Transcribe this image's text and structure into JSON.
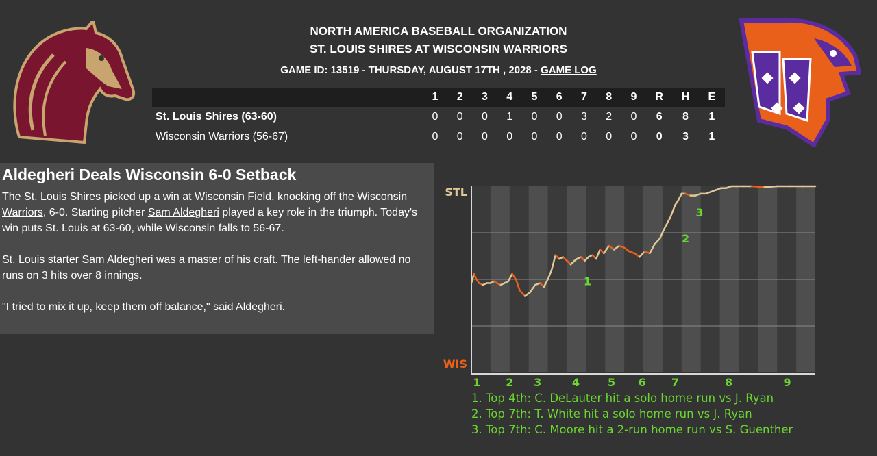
{
  "header": {
    "organization": "NORTH AMERICA BASEBALL ORGANIZATION",
    "matchup": "ST. LOUIS SHIRES AT WISCONSIN WARRIORS",
    "game_info": "GAME ID: 13519 - THURSDAY, AUGUST 17TH , 2028 - ",
    "game_log_link": "GAME LOG"
  },
  "logos": {
    "away": {
      "name": "horse-logo-icon",
      "color": "#7a1530",
      "accent": "#c8a46e"
    },
    "home": {
      "name": "warrior-bird-logo-icon",
      "color": "#5a2ca0",
      "accent": "#e8601a"
    }
  },
  "linescore": {
    "innings": [
      "1",
      "2",
      "3",
      "4",
      "5",
      "6",
      "7",
      "8",
      "9"
    ],
    "totals_headers": [
      "R",
      "H",
      "E"
    ],
    "teams": [
      {
        "name": "St. Louis Shires (63-60)",
        "innings": [
          "0",
          "0",
          "0",
          "1",
          "0",
          "0",
          "3",
          "2",
          "0"
        ],
        "r": "6",
        "h": "8",
        "e": "1"
      },
      {
        "name": "Wisconsin Warriors (56-67)",
        "innings": [
          "0",
          "0",
          "0",
          "0",
          "0",
          "0",
          "0",
          "0",
          "0"
        ],
        "r": "0",
        "h": "3",
        "e": "1"
      }
    ]
  },
  "story": {
    "headline": "Aldegheri Deals Wisconsin 6-0 Setback",
    "p1_a": "The ",
    "p1_link1": "St. Louis Shires",
    "p1_b": " picked up a win at Wisconsin Field, knocking off the ",
    "p1_link2": "Wisconsin Warriors",
    "p1_c": ", 6-0. Starting pitcher ",
    "p1_link3": "Sam Aldegheri",
    "p1_d": " played a key role in the triumph. Today's win puts St. Louis at 63-60, while Wisconsin falls to 56-67.",
    "p2": "St. Louis starter Sam Aldegheri was a master of his craft. The left-hander allowed no runs on 3 hits over 8 innings.",
    "p3": "\"I tried to mix it up, keep them off balance,\" said Aldegheri."
  },
  "chart_data": {
    "type": "line",
    "top_label": "STL",
    "bottom_label": "WIS",
    "x_ticks": [
      "1",
      "2",
      "3",
      "4",
      "5",
      "6",
      "7",
      "8",
      "9"
    ],
    "x_tick_positions": [
      0,
      1.5,
      2.6,
      4.1,
      5.5,
      6.7,
      8.0,
      10.1,
      12.4
    ],
    "x_range": [
      0,
      13.5
    ],
    "y_range": [
      0,
      1
    ],
    "colors": {
      "away": "#e0c898",
      "home": "#e8601a",
      "markers": "#6ad630"
    },
    "x": [
      0,
      0.1,
      0.2,
      0.3,
      0.45,
      0.6,
      0.75,
      0.9,
      1.0,
      1.15,
      1.3,
      1.45,
      1.6,
      1.75,
      1.9,
      2.1,
      2.3,
      2.5,
      2.7,
      2.85,
      3.0,
      3.15,
      3.3,
      3.45,
      3.6,
      3.75,
      3.9,
      4.05,
      4.15,
      4.3,
      4.45,
      4.6,
      4.75,
      4.9,
      5.05,
      5.2,
      5.4,
      5.6,
      5.8,
      6.0,
      6.2,
      6.4,
      6.6,
      6.8,
      7.0,
      7.2,
      7.4,
      7.6,
      7.8,
      8.0,
      8.1,
      8.25,
      8.4,
      8.6,
      8.8,
      9.0,
      9.2,
      9.4,
      9.6,
      9.8,
      10.0,
      10.2,
      10.4,
      10.7,
      11.0,
      11.5,
      12.0,
      12.5,
      13.0,
      13.5
    ],
    "win_prob_stl": [
      0.48,
      0.53,
      0.5,
      0.48,
      0.47,
      0.48,
      0.48,
      0.49,
      0.48,
      0.47,
      0.48,
      0.49,
      0.53,
      0.5,
      0.44,
      0.41,
      0.43,
      0.47,
      0.48,
      0.46,
      0.5,
      0.55,
      0.63,
      0.61,
      0.62,
      0.6,
      0.58,
      0.6,
      0.61,
      0.62,
      0.6,
      0.62,
      0.63,
      0.61,
      0.66,
      0.64,
      0.68,
      0.66,
      0.68,
      0.67,
      0.65,
      0.64,
      0.62,
      0.65,
      0.64,
      0.69,
      0.72,
      0.78,
      0.83,
      0.9,
      0.92,
      0.96,
      0.96,
      0.95,
      0.95,
      0.96,
      0.96,
      0.97,
      0.98,
      0.99,
      0.99,
      1.0,
      1.0,
      1.0,
      1.0,
      0.995,
      1.0,
      1.0,
      1.0,
      1.0
    ],
    "markers": [
      {
        "label": "1",
        "x": 4.3,
        "y": 0.49
      },
      {
        "label": "2",
        "x": 8.15,
        "y": 0.72
      },
      {
        "label": "3",
        "x": 8.7,
        "y": 0.86
      }
    ],
    "events": [
      "1. Top 4th: C. DeLauter hit a solo home run vs J. Ryan",
      "2. Top 7th: T. White hit a solo home run vs J. Ryan",
      "3. Top 7th: C. Moore hit a 2-run home run vs S. Guenther"
    ]
  }
}
